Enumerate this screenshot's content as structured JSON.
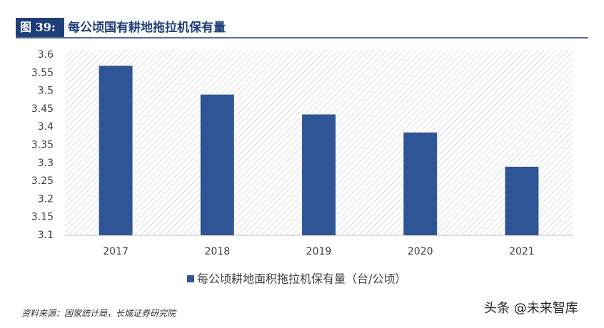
{
  "chart_data": {
    "type": "bar",
    "figure_label": "图 39:",
    "title": "每公顷国有耕地拖拉机保有量",
    "categories": [
      "2017",
      "2018",
      "2019",
      "2020",
      "2021"
    ],
    "series": [
      {
        "name": "每公顷耕地面积拖拉机保有量（台/公顷）",
        "color": "#2f5597",
        "values": [
          3.57,
          3.49,
          3.435,
          3.385,
          3.29
        ]
      }
    ],
    "ylim": [
      3.1,
      3.6
    ],
    "yticks": [
      3.1,
      3.15,
      3.2,
      3.25,
      3.3,
      3.35,
      3.4,
      3.45,
      3.5,
      3.55,
      3.6
    ],
    "legend": "bottom",
    "source": "资料来源：国家统计局，长城证券研究院",
    "watermark": "头条 @未来智库"
  }
}
